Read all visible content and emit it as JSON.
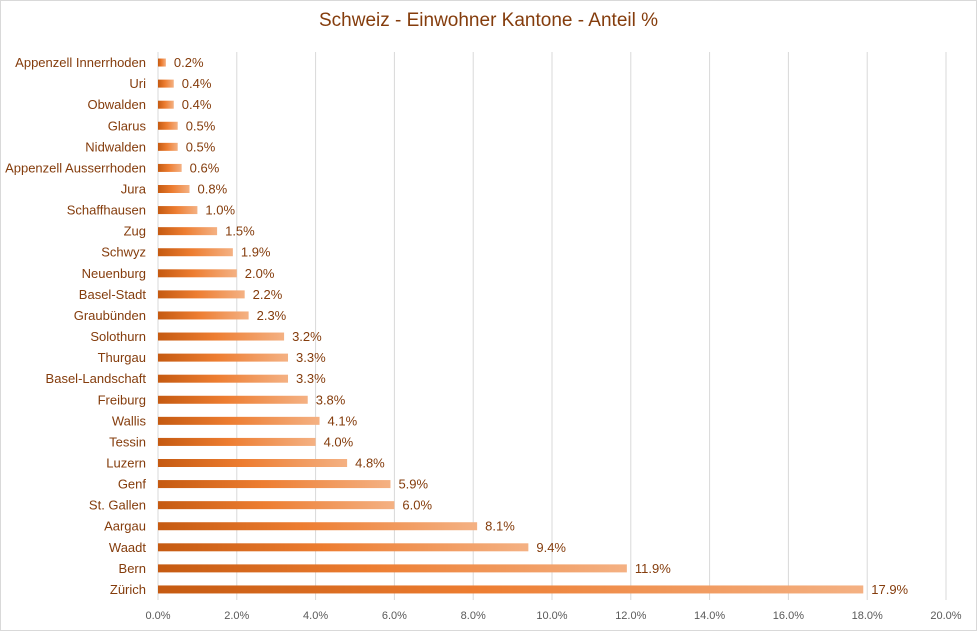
{
  "colors": {
    "bar_dark": "#c55a11",
    "bar_mid": "#ed7d31",
    "bar_light": "#f4b183",
    "text": "#843c0c",
    "axis_text": "#595959",
    "grid": "#d9d9d9"
  },
  "chart_data": {
    "type": "bar",
    "orientation": "horizontal",
    "title": "Schweiz - Einwohner Kantone - Anteil %",
    "xlabel": "",
    "ylabel": "",
    "xlim": [
      0,
      20
    ],
    "x_ticks": [
      0,
      2,
      4,
      6,
      8,
      10,
      12,
      14,
      16,
      18,
      20
    ],
    "x_tick_labels": [
      "0.0%",
      "2.0%",
      "4.0%",
      "6.0%",
      "8.0%",
      "10.0%",
      "12.0%",
      "14.0%",
      "16.0%",
      "18.0%",
      "20.0%"
    ],
    "grid": "vertical",
    "categories": [
      "Appenzell Innerrhoden",
      "Uri",
      "Obwalden",
      "Glarus",
      "Nidwalden",
      "Appenzell Ausserrhoden",
      "Jura",
      "Schaffhausen",
      "Zug",
      "Schwyz",
      "Neuenburg",
      "Basel-Stadt",
      "Graubünden",
      "Solothurn",
      "Thurgau",
      "Basel-Landschaft",
      "Freiburg",
      "Wallis",
      "Tessin",
      "Luzern",
      "Genf",
      "St. Gallen",
      "Aargau",
      "Waadt",
      "Bern",
      "Zürich"
    ],
    "values": [
      0.2,
      0.4,
      0.4,
      0.5,
      0.5,
      0.6,
      0.8,
      1.0,
      1.5,
      1.9,
      2.0,
      2.2,
      2.3,
      3.2,
      3.3,
      3.3,
      3.8,
      4.1,
      4.0,
      4.8,
      5.9,
      6.0,
      8.1,
      9.4,
      11.9,
      17.9
    ],
    "data_labels": [
      "0.2%",
      "0.4%",
      "0.4%",
      "0.5%",
      "0.5%",
      "0.6%",
      "0.8%",
      "1.0%",
      "1.5%",
      "1.9%",
      "2.0%",
      "2.2%",
      "2.3%",
      "3.2%",
      "3.3%",
      "3.3%",
      "3.8%",
      "4.1%",
      "4.0%",
      "4.8%",
      "5.9%",
      "6.0%",
      "8.1%",
      "9.4%",
      "11.9%",
      "17.9%"
    ]
  }
}
